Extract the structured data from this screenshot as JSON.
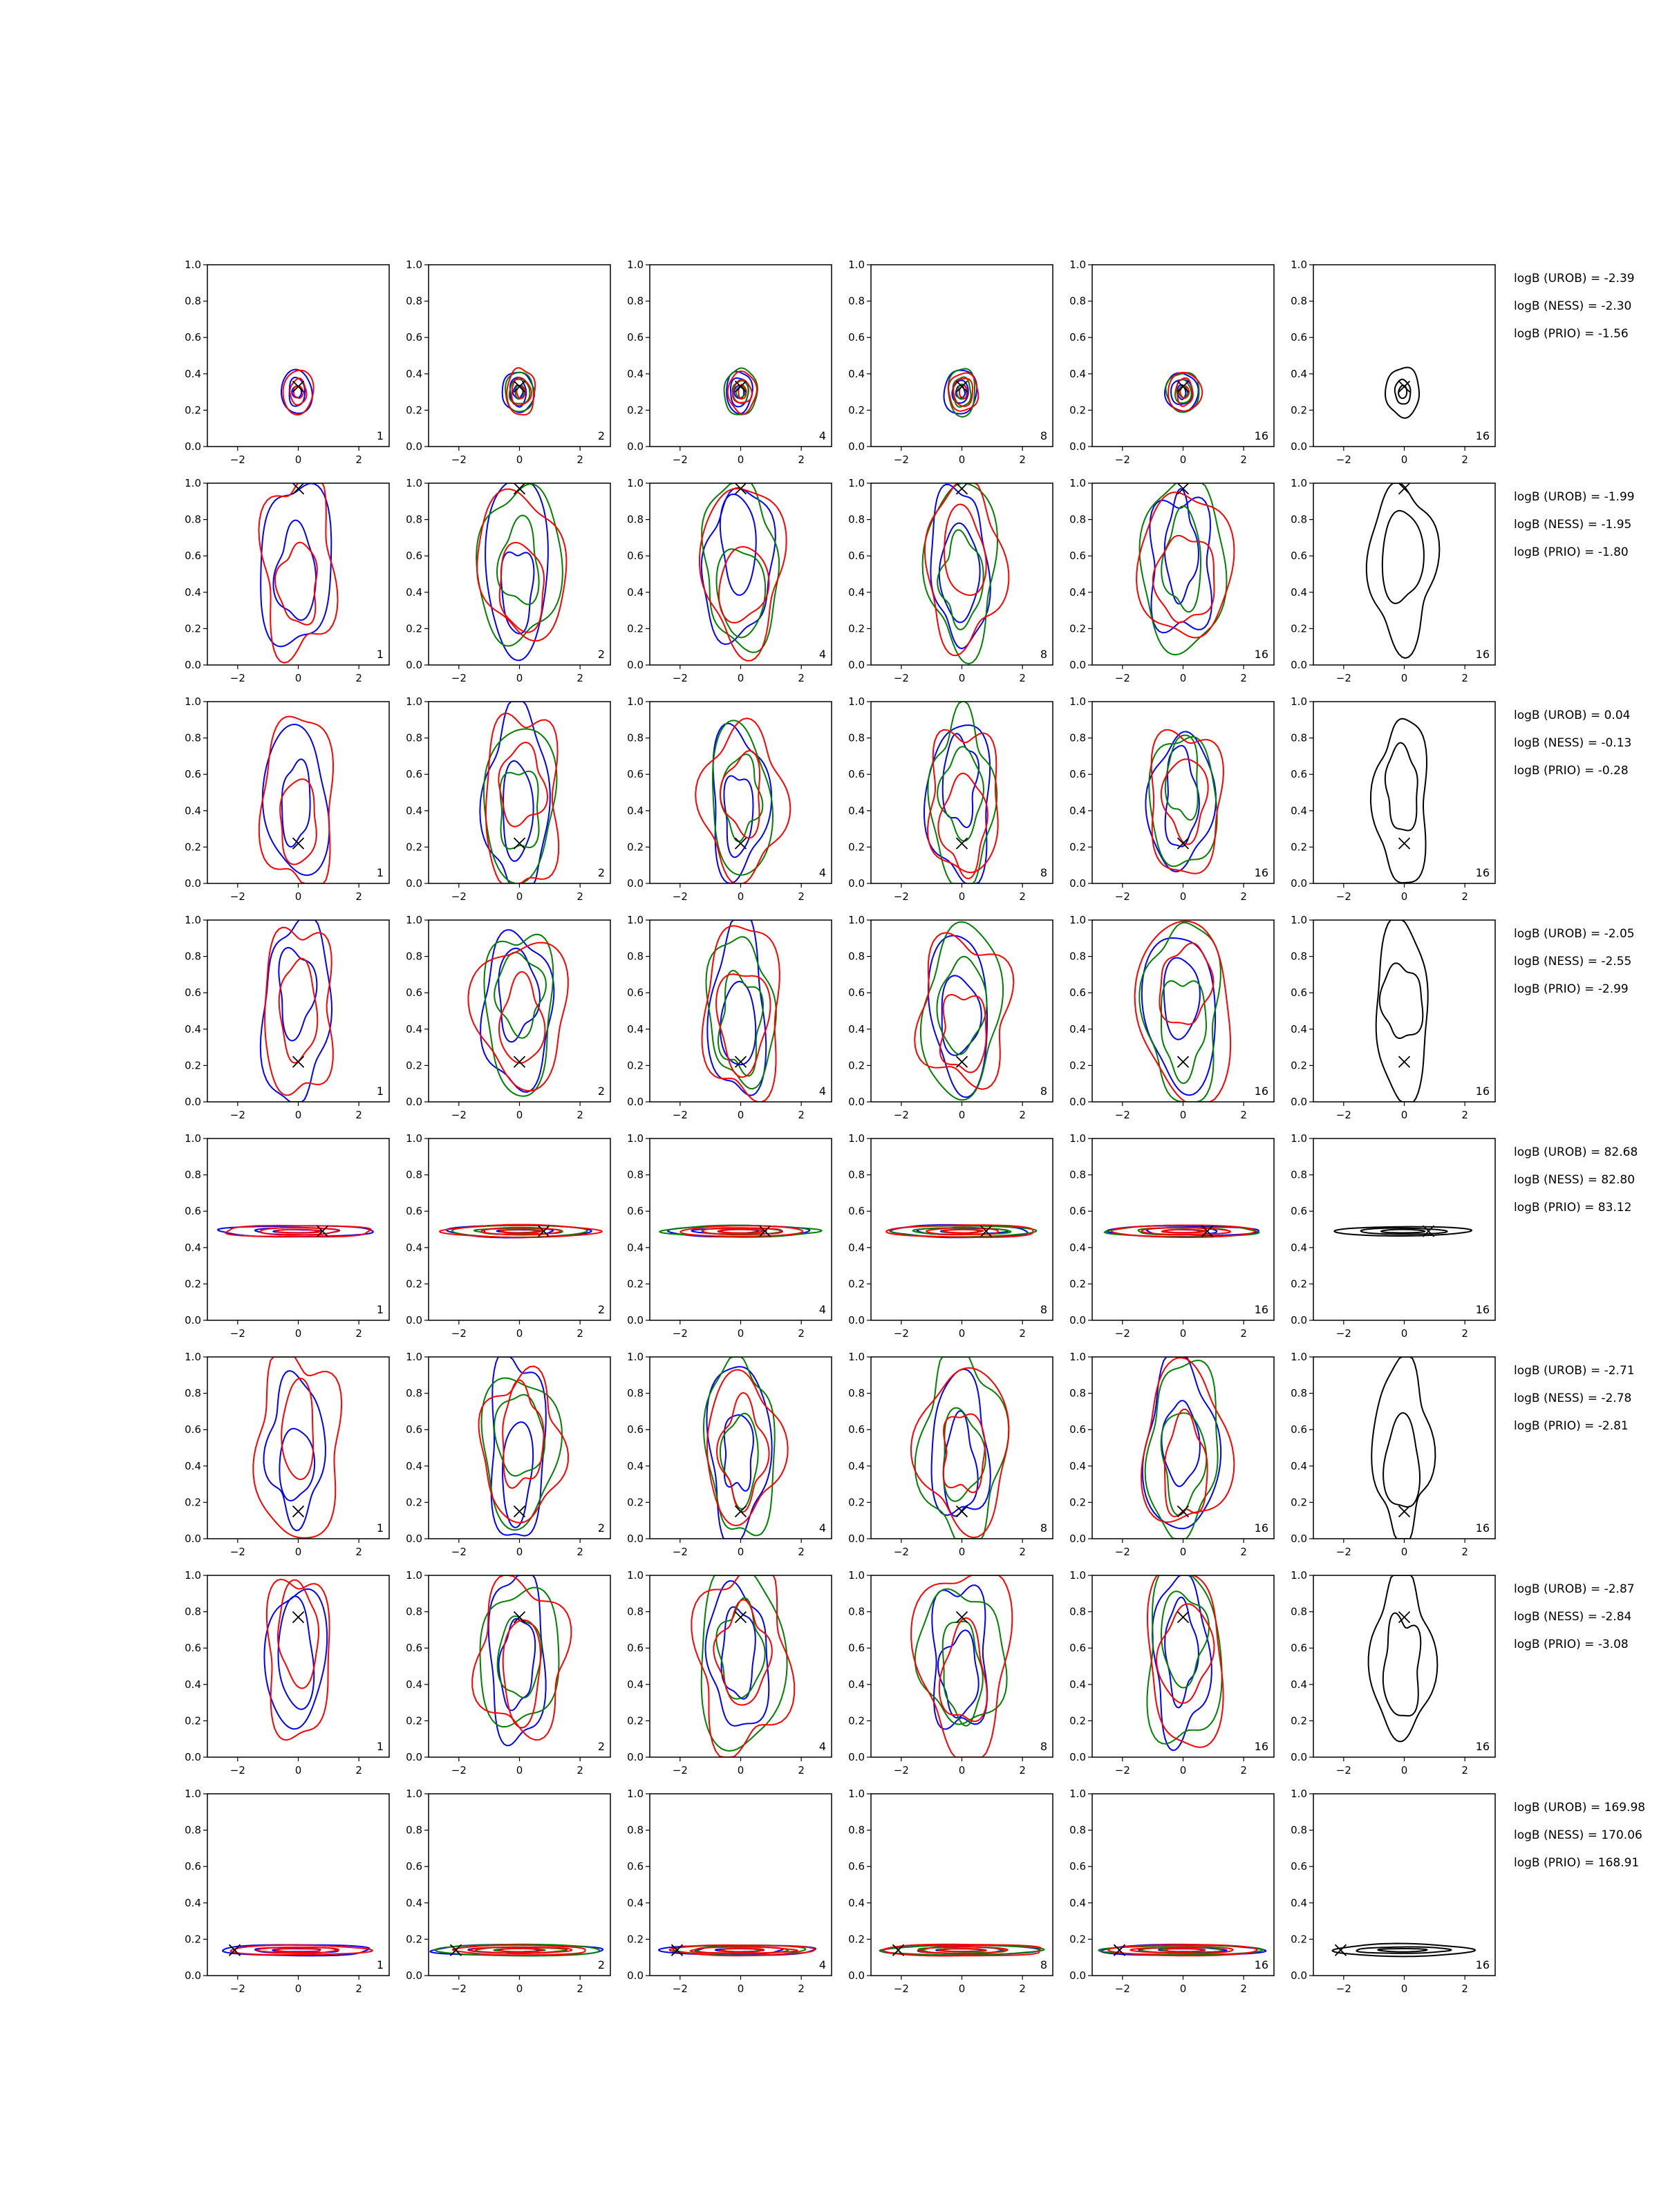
{
  "chart_data": {
    "type": "contour",
    "grid_rows": 8,
    "grid_cols": 6,
    "x_ticks": [
      "−2",
      "0",
      "2"
    ],
    "y_ticks": [
      "0.0",
      "0.2",
      "0.4",
      "0.6",
      "0.8",
      "1.0"
    ],
    "xlim": [
      -3,
      3
    ],
    "ylim": [
      0,
      1
    ],
    "series_colors": {
      "UROB": "#0000ff",
      "NESS": "#008000",
      "PRIO": "#ff0000",
      "combined": "#000000"
    },
    "column_labels": [
      "1",
      "2",
      "4",
      "8",
      "16",
      "16"
    ],
    "rows": [
      {
        "marker": [
          0.0,
          0.33
        ],
        "spread": [
          0.5,
          0.12
        ],
        "cy": 0.3,
        "kind": "flat",
        "logB": [
          "logB (UROB) = -2.39",
          "logB (NESS) = -2.30",
          "logB (PRIO) = -1.56"
        ]
      },
      {
        "marker": [
          0.0,
          0.97
        ],
        "spread": [
          1.3,
          0.45
        ],
        "cy": 0.55,
        "kind": "tall",
        "logB": [
          "logB (UROB) = -1.99",
          "logB (NESS) = -1.95",
          "logB (PRIO) = -1.80"
        ]
      },
      {
        "marker": [
          0.0,
          0.22
        ],
        "spread": [
          1.2,
          0.45
        ],
        "cy": 0.45,
        "kind": "tall",
        "logB": [
          "logB (UROB) = 0.04",
          "logB (NESS) = -0.13",
          "logB (PRIO) = -0.28"
        ]
      },
      {
        "marker": [
          0.0,
          0.22
        ],
        "spread": [
          1.3,
          0.45
        ],
        "cy": 0.5,
        "kind": "tall",
        "logB": [
          "logB (UROB) = -2.05",
          "logB (NESS) = -2.55",
          "logB (PRIO) = -2.99"
        ]
      },
      {
        "marker": [
          0.8,
          0.49
        ],
        "spread": [
          2.3,
          0.03
        ],
        "cy": 0.49,
        "kind": "flat",
        "logB": [
          "logB (UROB) = 82.68",
          "logB (NESS) = 82.80",
          "logB (PRIO) = 83.12"
        ]
      },
      {
        "marker": [
          0.0,
          0.15
        ],
        "spread": [
          1.3,
          0.45
        ],
        "cy": 0.5,
        "kind": "tall",
        "logB": [
          "logB (UROB) = -2.71",
          "logB (NESS) = -2.78",
          "logB (PRIO) = -2.81"
        ]
      },
      {
        "marker": [
          0.0,
          0.77
        ],
        "spread": [
          1.3,
          0.45
        ],
        "cy": 0.55,
        "kind": "tall",
        "logB": [
          "logB (UROB) = -2.87",
          "logB (NESS) = -2.84",
          "logB (PRIO) = -3.08"
        ]
      },
      {
        "marker": [
          -2.1,
          0.14
        ],
        "spread": [
          2.5,
          0.03
        ],
        "cy": 0.14,
        "kind": "flat",
        "logB": [
          "logB (UROB) = 169.98",
          "logB (NESS) = 170.06",
          "logB (PRIO) = 168.91"
        ]
      }
    ]
  }
}
